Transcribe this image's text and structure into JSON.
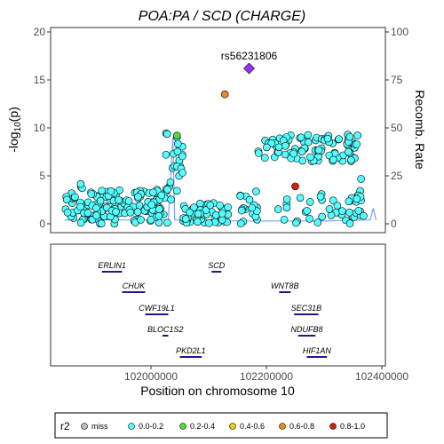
{
  "chart_data": {
    "type": "scatter",
    "title": "POA:PA / SCD (CHARGE)",
    "xlabel": "Position on chromosome 10",
    "ylabel_left": "-log10(p)",
    "ylabel_right": "Recomb. Rate",
    "xlim": [
      101840000,
      102400000
    ],
    "ylim_left": [
      0,
      20
    ],
    "ylim_right": [
      0,
      100
    ],
    "x_ticks": [
      102000000,
      102200000,
      102400000
    ],
    "y_ticks_left": [
      0,
      5,
      10,
      15,
      20
    ],
    "y_ticks_right": [
      0,
      25,
      50,
      75,
      100
    ],
    "lead_snp": {
      "label": "rs56231806",
      "x": 102170000,
      "y": 16.2,
      "color": "#9b30ff"
    },
    "colored_points": [
      {
        "x": 102128000,
        "y": 13.5,
        "r2": "0.6-0.8"
      },
      {
        "x": 102045000,
        "y": 9.2,
        "r2": "0.2-0.4"
      },
      {
        "x": 102250000,
        "y": 3.9,
        "r2": "0.8-1.0"
      }
    ],
    "point_clusters": [
      {
        "x_range": [
          101850000,
          101870000
        ],
        "y_range": [
          0,
          3.2
        ],
        "count": 14
      },
      {
        "x_range": [
          101870000,
          101890000
        ],
        "y_range": [
          0,
          4.4
        ],
        "count": 16
      },
      {
        "x_range": [
          101890000,
          101960000
        ],
        "y_range": [
          0,
          3.5
        ],
        "count": 60
      },
      {
        "x_range": [
          101960000,
          102030000
        ],
        "y_range": [
          0,
          3.6
        ],
        "count": 55
      },
      {
        "x_range": [
          102025000,
          102055000
        ],
        "y_range": [
          2.5,
          9.5
        ],
        "count": 25
      },
      {
        "x_range": [
          102055000,
          102140000
        ],
        "y_range": [
          0,
          2.2
        ],
        "count": 45
      },
      {
        "x_range": [
          102150000,
          102185000
        ],
        "y_range": [
          0,
          3.5
        ],
        "count": 18
      },
      {
        "x_range": [
          102185000,
          102360000
        ],
        "y_range": [
          6.5,
          9.3
        ],
        "count": 90
      },
      {
        "x_range": [
          102220000,
          102360000
        ],
        "y_range": [
          0,
          3.2
        ],
        "count": 35
      },
      {
        "x_range": [
          102355000,
          102370000
        ],
        "y_range": [
          0,
          5.0
        ],
        "count": 12
      }
    ],
    "recomb_line": [
      [
        101850000,
        2
      ],
      [
        101950000,
        2
      ],
      [
        102030000,
        2
      ],
      [
        102038000,
        45
      ],
      [
        102041000,
        2
      ],
      [
        102120000,
        1.5
      ],
      [
        102220000,
        1.5
      ],
      [
        102300000,
        1.5
      ],
      [
        102380000,
        2
      ],
      [
        102385000,
        8
      ],
      [
        102390000,
        2
      ]
    ],
    "genes": [
      {
        "name": "ERLIN1",
        "start": 101915000,
        "end": 101950000,
        "row": 0
      },
      {
        "name": "SCD",
        "start": 102105000,
        "end": 102122000,
        "row": 0
      },
      {
        "name": "CHUK",
        "start": 101950000,
        "end": 101990000,
        "row": 1
      },
      {
        "name": "WNT8B",
        "start": 102222000,
        "end": 102242000,
        "row": 1
      },
      {
        "name": "CWF19L1",
        "start": 101990000,
        "end": 102030000,
        "row": 2
      },
      {
        "name": "SEC31B",
        "start": 102248000,
        "end": 102290000,
        "row": 2
      },
      {
        "name": "BLOC1S2",
        "start": 102020000,
        "end": 102030000,
        "row": 3
      },
      {
        "name": "NDUFB8",
        "start": 102255000,
        "end": 102285000,
        "row": 3
      },
      {
        "name": "PKD2L1",
        "start": 102050000,
        "end": 102088000,
        "row": 4
      },
      {
        "name": "HIF1AN",
        "start": 102270000,
        "end": 102305000,
        "row": 4
      }
    ],
    "legend": {
      "title": "r2",
      "placement": "bottom",
      "items": [
        {
          "label": "miss",
          "color": "#bebebe"
        },
        {
          "label": "0.0-0.2",
          "color": "#55ffff"
        },
        {
          "label": "0.2-0.4",
          "color": "#55dd33"
        },
        {
          "label": "0.4-0.6",
          "color": "#eecc11"
        },
        {
          "label": "0.6-0.8",
          "color": "#ee8822"
        },
        {
          "label": "0.8-1.0",
          "color": "#cc2211"
        }
      ]
    },
    "grid": false
  }
}
